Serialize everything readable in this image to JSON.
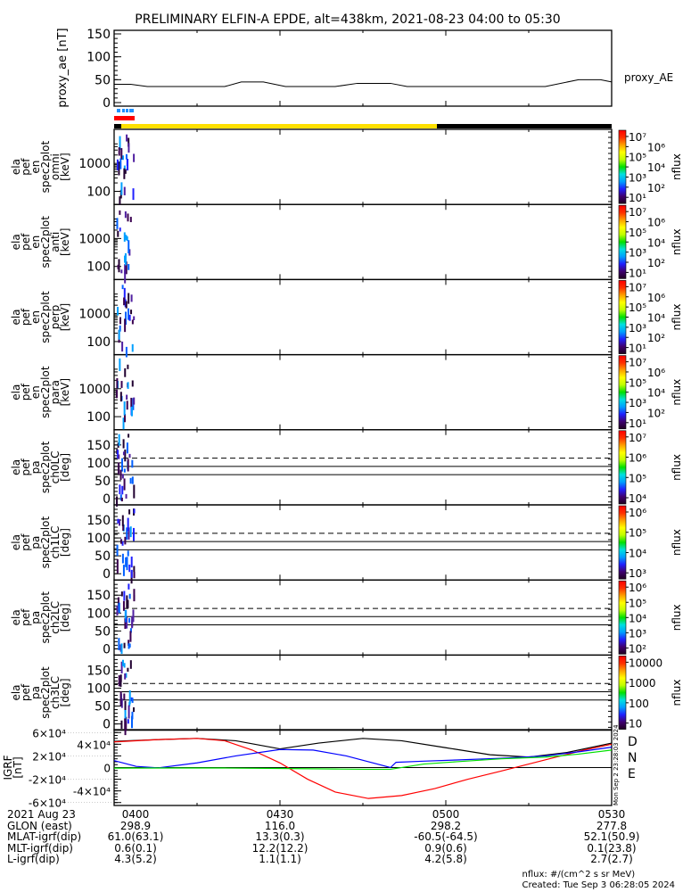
{
  "title": "PRELIMINARY ELFIN-A EPDE, alt=438km, 2021-08-23 04:00 to 05:30",
  "colors": {
    "red": "#ff0000",
    "yellow": "#ffe000",
    "black": "#000000",
    "blue": "#0000ff",
    "green": "#00e000",
    "lightblue": "#1e90ff"
  },
  "chart_data": [
    {
      "type": "line",
      "name": "proxy_ae",
      "ylabel": "proxy_ae [nT]",
      "legend": "proxy_AE",
      "ylim": [
        0,
        150
      ],
      "yticks": [
        "0",
        "50",
        "100",
        "150"
      ],
      "x_minutes": [
        0,
        3,
        6,
        20,
        23,
        27,
        31,
        40,
        44,
        50,
        53,
        72,
        78,
        84,
        88,
        90
      ],
      "y": [
        40,
        40,
        35,
        35,
        45,
        45,
        35,
        35,
        42,
        42,
        35,
        35,
        35,
        50,
        50,
        45
      ]
    },
    {
      "type": "heatmap",
      "name": "omni",
      "ylabel": [
        "ela",
        "pef",
        "en",
        "spec2plot",
        "omni",
        "[keV]"
      ],
      "yticks": [
        "100",
        "1000"
      ],
      "colorbar": {
        "label": "nflux",
        "ticks": [
          "10¹",
          "10²",
          "10³",
          "10⁴",
          "10⁵",
          "10⁶",
          "10⁷"
        ]
      }
    },
    {
      "type": "heatmap",
      "name": "anti",
      "ylabel": [
        "ela",
        "pef",
        "en",
        "spec2plot",
        "anti",
        "[keV]"
      ],
      "yticks": [
        "100",
        "1000"
      ],
      "colorbar": {
        "label": "nflux",
        "ticks": [
          "10¹",
          "10²",
          "10³",
          "10⁴",
          "10⁵",
          "10⁶",
          "10⁷"
        ]
      }
    },
    {
      "type": "heatmap",
      "name": "perp",
      "ylabel": [
        "ela",
        "pef",
        "en",
        "spec2plot",
        "perp",
        "[keV]"
      ],
      "yticks": [
        "100",
        "1000"
      ],
      "colorbar": {
        "label": "nflux",
        "ticks": [
          "10¹",
          "10²",
          "10³",
          "10⁴",
          "10⁵",
          "10⁶",
          "10⁷"
        ]
      }
    },
    {
      "type": "heatmap",
      "name": "para",
      "ylabel": [
        "ela",
        "pef",
        "en",
        "spec2plot",
        "para",
        "[keV]"
      ],
      "yticks": [
        "100",
        "1000"
      ],
      "colorbar": {
        "label": "nflux",
        "ticks": [
          "10¹",
          "10²",
          "10³",
          "10⁴",
          "10⁵",
          "10⁶",
          "10⁷"
        ]
      }
    },
    {
      "type": "heatmap",
      "name": "ch0LC",
      "ylabel": [
        "ela",
        "pef",
        "pa",
        "spec2plot",
        "ch0LC",
        "[deg]"
      ],
      "yticks": [
        "0",
        "50",
        "100",
        "150"
      ],
      "ylim": [
        0,
        180
      ],
      "lines": {
        "dashed": 113,
        "solid": [
          90,
          67
        ]
      },
      "colorbar": {
        "label": "nflux",
        "ticks": [
          "10⁴",
          "10⁵",
          "10⁶",
          "10⁷"
        ]
      }
    },
    {
      "type": "heatmap",
      "name": "ch1LC",
      "ylabel": [
        "ela",
        "pef",
        "pa",
        "spec2plot",
        "ch1LC",
        "[deg]"
      ],
      "yticks": [
        "0",
        "50",
        "100",
        "150"
      ],
      "ylim": [
        0,
        180
      ],
      "lines": {
        "dashed": 113,
        "solid": [
          90,
          67
        ]
      },
      "colorbar": {
        "label": "nflux",
        "ticks": [
          "10³",
          "10⁴",
          "10⁵",
          "10⁶"
        ]
      }
    },
    {
      "type": "heatmap",
      "name": "ch2LC",
      "ylabel": [
        "ela",
        "pef",
        "pa",
        "spec2plot",
        "ch2LC",
        "[deg]"
      ],
      "yticks": [
        "0",
        "50",
        "100",
        "150"
      ],
      "ylim": [
        0,
        180
      ],
      "lines": {
        "dashed": 113,
        "solid": [
          90,
          67
        ]
      },
      "colorbar": {
        "label": "nflux",
        "ticks": [
          "10²",
          "10³",
          "10⁴",
          "10⁵",
          "10⁶"
        ]
      }
    },
    {
      "type": "heatmap",
      "name": "ch3LC",
      "ylabel": [
        "ela",
        "pef",
        "pa",
        "spec2plot",
        "ch3LC",
        "[deg]"
      ],
      "yticks": [
        "0",
        "50",
        "100",
        "150"
      ],
      "ylim": [
        0,
        180
      ],
      "lines": {
        "dashed": 113,
        "solid": [
          90,
          67
        ]
      },
      "colorbar": {
        "label": "nflux",
        "ticks": [
          "10",
          "100",
          "1000",
          "10000"
        ]
      }
    },
    {
      "type": "line",
      "name": "igrf",
      "ylabel": [
        "IGRF",
        "[nT]"
      ],
      "ylim": [
        -65000,
        65000
      ],
      "yticks": [
        "-6×10⁴",
        "-4×10⁴",
        "-2×10⁴",
        "0",
        "2×10⁴",
        "4×10⁴",
        "6×10⁴"
      ],
      "series": [
        {
          "name": "total",
          "color": "#000000",
          "x": [
            0,
            8,
            15,
            22,
            30,
            37,
            45,
            52,
            60,
            68,
            75,
            82,
            90
          ],
          "y": [
            45000,
            48000,
            50000,
            46000,
            32000,
            42000,
            50000,
            46000,
            34000,
            22000,
            18000,
            26000,
            42000
          ]
        },
        {
          "name": "D",
          "color": "#ff0000",
          "x": [
            0,
            8,
            15,
            20,
            25,
            30,
            35,
            40,
            46,
            52,
            58,
            64,
            70,
            75,
            80,
            85,
            90
          ],
          "y": [
            44000,
            48000,
            50000,
            46000,
            30000,
            8000,
            -20000,
            -42000,
            -53000,
            -48000,
            -36000,
            -20000,
            -6000,
            6000,
            18000,
            30000,
            40000
          ]
        },
        {
          "name": "N",
          "color": "#0000ff",
          "x": [
            0,
            4,
            8,
            15,
            22,
            30,
            36,
            42,
            50,
            51,
            56,
            62,
            70,
            78,
            84,
            90
          ],
          "y": [
            12000,
            2000,
            -500,
            8000,
            20000,
            31000,
            30000,
            20000,
            0,
            9000,
            11000,
            13000,
            16000,
            20000,
            27000,
            35000
          ]
        },
        {
          "name": "E",
          "color": "#00e000",
          "x": [
            0,
            8,
            20,
            30,
            40,
            46,
            50,
            56,
            62,
            70,
            78,
            84,
            90
          ],
          "y": [
            -1000,
            -800,
            -800,
            -1500,
            -2500,
            -3000,
            -3000,
            6000,
            10000,
            15000,
            18000,
            23000,
            30000
          ]
        }
      ],
      "legend": [
        "D",
        "N",
        "E"
      ],
      "side_stamp": "Mon Sep  2 23:28:03 2024"
    }
  ],
  "proxy_legend": "proxy_AE",
  "nflux_label": "nflux",
  "footer": {
    "row_labels": "2021 Aug 23\nGLON (east)\nMLAT-igrf(dip)\nMLT-igrf(dip)\nL-igrf(dip)",
    "cols": [
      {
        "time": "0400",
        "glon": "298.9",
        "mlat": "61.0(63.1)",
        "mlt": "0.6(0.1)",
        "l": "4.3(5.2)"
      },
      {
        "time": "0430",
        "glon": "116.0",
        "mlat": "13.3(0.3)",
        "mlt": "12.2(12.2)",
        "l": "1.1(1.1)"
      },
      {
        "time": "0500",
        "glon": "298.2",
        "mlat": "-60.5(-64.5)",
        "mlt": "0.9(0.6)",
        "l": "4.2(5.8)"
      },
      {
        "time": "0530",
        "glon": "277.8",
        "mlat": "52.1(50.9)",
        "mlt": "0.1(23.8)",
        "l": "2.7(2.7)"
      }
    ],
    "units": "nflux: #/(cm^2 s sr MeV)",
    "created": "Created: Tue Sep  3 06:28:05 2024"
  }
}
